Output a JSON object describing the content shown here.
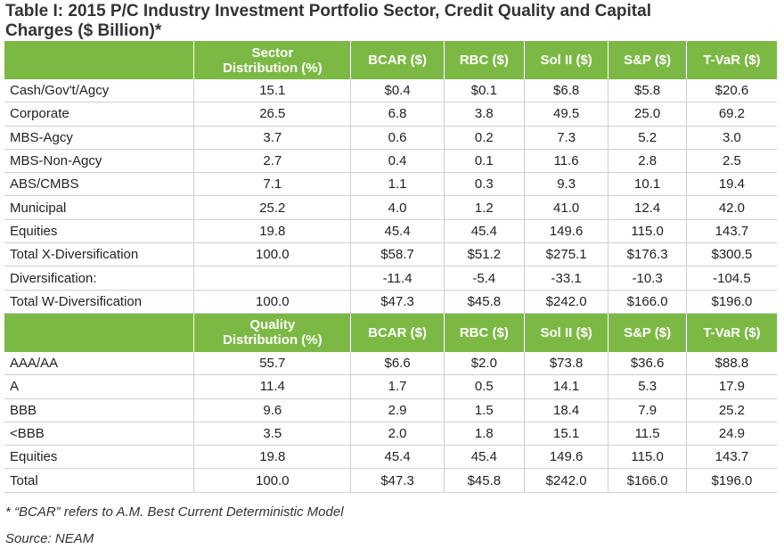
{
  "title": "Table I: 2015 P/C Industry Investment Portfolio Sector, Credit Quality and Capital Charges ($ Billion)*",
  "sections": [
    {
      "header": [
        "Sector Distribution (%)",
        "BCAR ($)",
        "RBC ($)",
        "Sol II ($)",
        "S&P ($)",
        "T-VaR ($)"
      ],
      "rows": [
        [
          "Cash/Gov't/Agcy",
          "15.1",
          "$0.4",
          "$0.1",
          "$6.8",
          "$5.8",
          "$20.6"
        ],
        [
          "Corporate",
          "26.5",
          "6.8",
          "3.8",
          "49.5",
          "25.0",
          "69.2"
        ],
        [
          "MBS-Agcy",
          "3.7",
          "0.6",
          "0.2",
          "7.3",
          "5.2",
          "3.0"
        ],
        [
          "MBS-Non-Agcy",
          "2.7",
          "0.4",
          "0.1",
          "11.6",
          "2.8",
          "2.5"
        ],
        [
          "ABS/CMBS",
          "7.1",
          "1.1",
          "0.3",
          "9.3",
          "10.1",
          "19.4"
        ],
        [
          "Municipal",
          "25.2",
          "4.0",
          "1.2",
          "41.0",
          "12.4",
          "42.0"
        ],
        [
          "Equities",
          "19.8",
          "45.4",
          "45.4",
          "149.6",
          "115.0",
          "143.7"
        ],
        [
          "Total X-Diversification",
          "100.0",
          "$58.7",
          "$51.2",
          "$275.1",
          "$176.3",
          "$300.5"
        ],
        [
          "Diversification:",
          null,
          "-11.4",
          "-5.4",
          "-33.1",
          "-10.3",
          "-104.5"
        ],
        [
          "Total W-Diversification",
          "100.0",
          "$47.3",
          "$45.8",
          "$242.0",
          "$166.0",
          "$196.0"
        ]
      ]
    },
    {
      "header": [
        "Quality Distribution (%)",
        "BCAR ($)",
        "RBC ($)",
        "Sol II ($)",
        "S&P ($)",
        "T-VaR ($)"
      ],
      "rows": [
        [
          "AAA/AA",
          "55.7",
          "$6.6",
          "$2.0",
          "$73.8",
          "$36.6",
          "$88.8"
        ],
        [
          "A",
          "11.4",
          "1.7",
          "0.5",
          "14.1",
          "5.3",
          "17.9"
        ],
        [
          "BBB",
          "9.6",
          "2.9",
          "1.5",
          "18.4",
          "7.9",
          "25.2"
        ],
        [
          "<BBB",
          "3.5",
          "2.0",
          "1.8",
          "15.1",
          "11.5",
          "24.9"
        ],
        [
          "Equities",
          "19.8",
          "45.4",
          "45.4",
          "149.6",
          "115.0",
          "143.7"
        ],
        [
          "Total",
          "100.0",
          "$47.3",
          "$45.8",
          "$242.0",
          "$166.0",
          "$196.0"
        ]
      ]
    }
  ],
  "footnote": "* “BCAR” refers to A.M. Best Current Deterministic Model",
  "source": "Source: NEAM"
}
